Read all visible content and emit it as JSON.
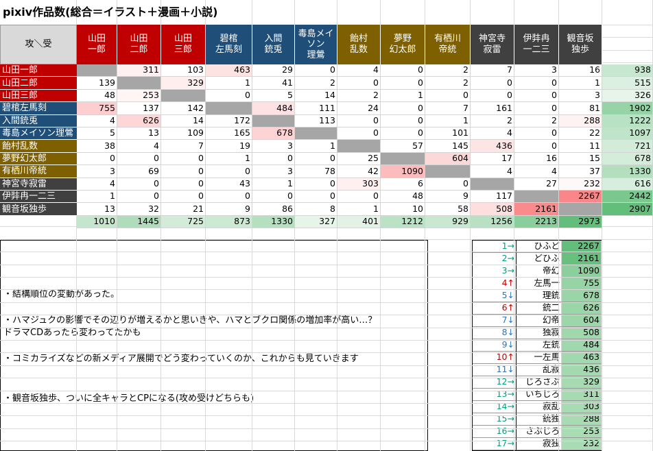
{
  "title": "pixiv作品数(総合＝イラスト＋漫画＋小説)",
  "table": {
    "corner": "攻＼受",
    "columns": [
      "山田\n一郎",
      "山田\n二郎",
      "山田\n三郎",
      "碧棺\n左馬刻",
      "入間\n銃兎",
      "毒島メイ\nソン\n理鶯",
      "飴村\n乱数",
      "夢野\n幻太郎",
      "有栖川\n帝統",
      "神宮寺\n寂雷",
      "伊弉冉\n一二三",
      "観音坂\n独歩"
    ],
    "rows": [
      {
        "label": "山田一郎",
        "values": [
          null,
          311,
          103,
          463,
          29,
          0,
          4,
          0,
          2,
          7,
          3,
          16
        ],
        "total": 938
      },
      {
        "label": "山田二郎",
        "values": [
          139,
          null,
          329,
          1,
          41,
          2,
          0,
          0,
          2,
          0,
          0,
          1
        ],
        "total": 515
      },
      {
        "label": "山田三郎",
        "values": [
          48,
          253,
          null,
          0,
          5,
          14,
          2,
          1,
          0,
          0,
          0,
          3
        ],
        "total": 326
      },
      {
        "label": "碧棺左馬刻",
        "values": [
          755,
          137,
          142,
          null,
          484,
          111,
          24,
          0,
          7,
          161,
          0,
          81
        ],
        "total": 1902
      },
      {
        "label": "入間銃兎",
        "values": [
          4,
          626,
          14,
          172,
          null,
          113,
          0,
          0,
          1,
          2,
          2,
          288
        ],
        "total": 1222
      },
      {
        "label": "毒島メイソン理鶯",
        "values": [
          5,
          13,
          109,
          165,
          678,
          null,
          0,
          0,
          101,
          4,
          0,
          22
        ],
        "total": 1097
      },
      {
        "label": "飴村乱数",
        "values": [
          38,
          4,
          7,
          19,
          3,
          1,
          null,
          57,
          145,
          436,
          0,
          11
        ],
        "total": 721
      },
      {
        "label": "夢野幻太郎",
        "values": [
          0,
          0,
          0,
          1,
          0,
          0,
          25,
          null,
          604,
          17,
          16,
          15
        ],
        "total": 678
      },
      {
        "label": "有栖川帝統",
        "values": [
          3,
          69,
          0,
          0,
          3,
          78,
          42,
          1090,
          null,
          4,
          4,
          37
        ],
        "total": 1330
      },
      {
        "label": "神宮寺寂雷",
        "values": [
          4,
          0,
          0,
          43,
          1,
          0,
          303,
          6,
          0,
          null,
          27,
          232
        ],
        "total": 616
      },
      {
        "label": "伊弉冉一二三",
        "values": [
          1,
          0,
          0,
          0,
          0,
          0,
          0,
          48,
          9,
          117,
          null,
          2267
        ],
        "total": 2442
      },
      {
        "label": "観音坂独歩",
        "values": [
          13,
          32,
          21,
          9,
          86,
          8,
          1,
          10,
          58,
          508,
          2161,
          null
        ],
        "total": 2907
      }
    ],
    "column_totals": [
      1010,
      1445,
      725,
      873,
      1330,
      327,
      401,
      1212,
      929,
      1256,
      2213,
      2973
    ]
  },
  "notes": [
    "・結構順位の変動があった。",
    "・ハマジュクの影響でその辺りが増えるかと思いきや、ハマとブクロ関係の増加率が高い…？\n ドラマCDあったら変わってたかも",
    "・コミカライズなどの新メディア展開でどう変わっていくのか、これからも見ていきます",
    "・観音坂独歩、ついに全キャラとCPになる(攻め受けどちらも)"
  ],
  "ranking": [
    {
      "rank": "1→",
      "pair": "ひふど",
      "value": 2267
    },
    {
      "rank": "2→",
      "pair": "どひふ",
      "value": 2161
    },
    {
      "rank": "3→",
      "pair": "帝幻",
      "value": 1090
    },
    {
      "rank": "4↑",
      "pair": "左馬一",
      "value": 755
    },
    {
      "rank": "5↓",
      "pair": "理銃",
      "value": 678
    },
    {
      "rank": "6↑",
      "pair": "銃二",
      "value": 626
    },
    {
      "rank": "7↓",
      "pair": "幻帝",
      "value": 604
    },
    {
      "rank": "8↓",
      "pair": "独寂",
      "value": 508
    },
    {
      "rank": "9↓",
      "pair": "左銃",
      "value": 484
    },
    {
      "rank": "10↑",
      "pair": "一左馬",
      "value": 463
    },
    {
      "rank": "11↓",
      "pair": "乱寂",
      "value": 436
    },
    {
      "rank": "12→",
      "pair": "じろさぶ",
      "value": 329
    },
    {
      "rank": "13→",
      "pair": "いちじろ",
      "value": 311
    },
    {
      "rank": "14→",
      "pair": "寂乱",
      "value": 303
    },
    {
      "rank": "15→",
      "pair": "銃独",
      "value": 288
    },
    {
      "rank": "16→",
      "pair": "さぶじろ",
      "value": 253
    },
    {
      "rank": "17→",
      "pair": "寂独",
      "value": 232
    }
  ]
}
